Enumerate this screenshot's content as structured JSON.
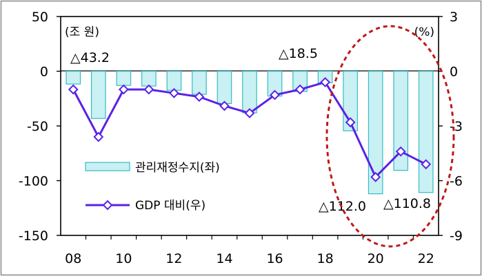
{
  "chart_data": {
    "type": "bar",
    "x": [
      "08",
      "09",
      "10",
      "11",
      "12",
      "13",
      "14",
      "15",
      "16",
      "17",
      "18",
      "19",
      "20",
      "21",
      "22"
    ],
    "x_tick_labels": [
      "08",
      "10",
      "12",
      "14",
      "16",
      "18",
      "20",
      "22"
    ],
    "left_axis": {
      "unit": "(조 원)",
      "ylim": [
        -150,
        50
      ],
      "ticks": [
        "50",
        "0",
        "-50",
        "-100",
        "-150"
      ],
      "tick_values": [
        50,
        0,
        -50,
        -100,
        -150
      ]
    },
    "right_axis": {
      "unit": "(%)",
      "ylim": [
        -9,
        3
      ],
      "ticks": [
        "3",
        "0",
        "-3",
        "-6",
        "-9"
      ],
      "tick_values": [
        3,
        0,
        -3,
        -6,
        -9
      ]
    },
    "series": [
      {
        "name": "관리재정수지(좌)",
        "type": "bar",
        "axis": "left",
        "color": "#c9f0f2",
        "edge": "#33bcc6",
        "values": [
          -11.7,
          -43.2,
          -13.0,
          -13.5,
          -17.4,
          -21.1,
          -29.5,
          -38.0,
          -22.7,
          -18.5,
          -10.6,
          -54.4,
          -112.0,
          -90.6,
          -110.8
        ]
      },
      {
        "name": "GDP 대비(우)",
        "type": "line",
        "axis": "right",
        "color": "#5b21e6",
        "values": [
          -1.0,
          -3.6,
          -1.0,
          -1.0,
          -1.2,
          -1.4,
          -1.9,
          -2.3,
          -1.3,
          -1.0,
          -0.6,
          -2.8,
          -5.8,
          -4.4,
          -5.1
        ]
      }
    ],
    "annotations": [
      "△43.2",
      "△18.5",
      "△112.0",
      "△110.8"
    ],
    "legend": "bottom-left",
    "grid": false,
    "highlight": {
      "shape": "ellipse",
      "style": "dashed",
      "color": "#c01818",
      "covers": [
        "19",
        "20",
        "21",
        "22"
      ]
    }
  }
}
